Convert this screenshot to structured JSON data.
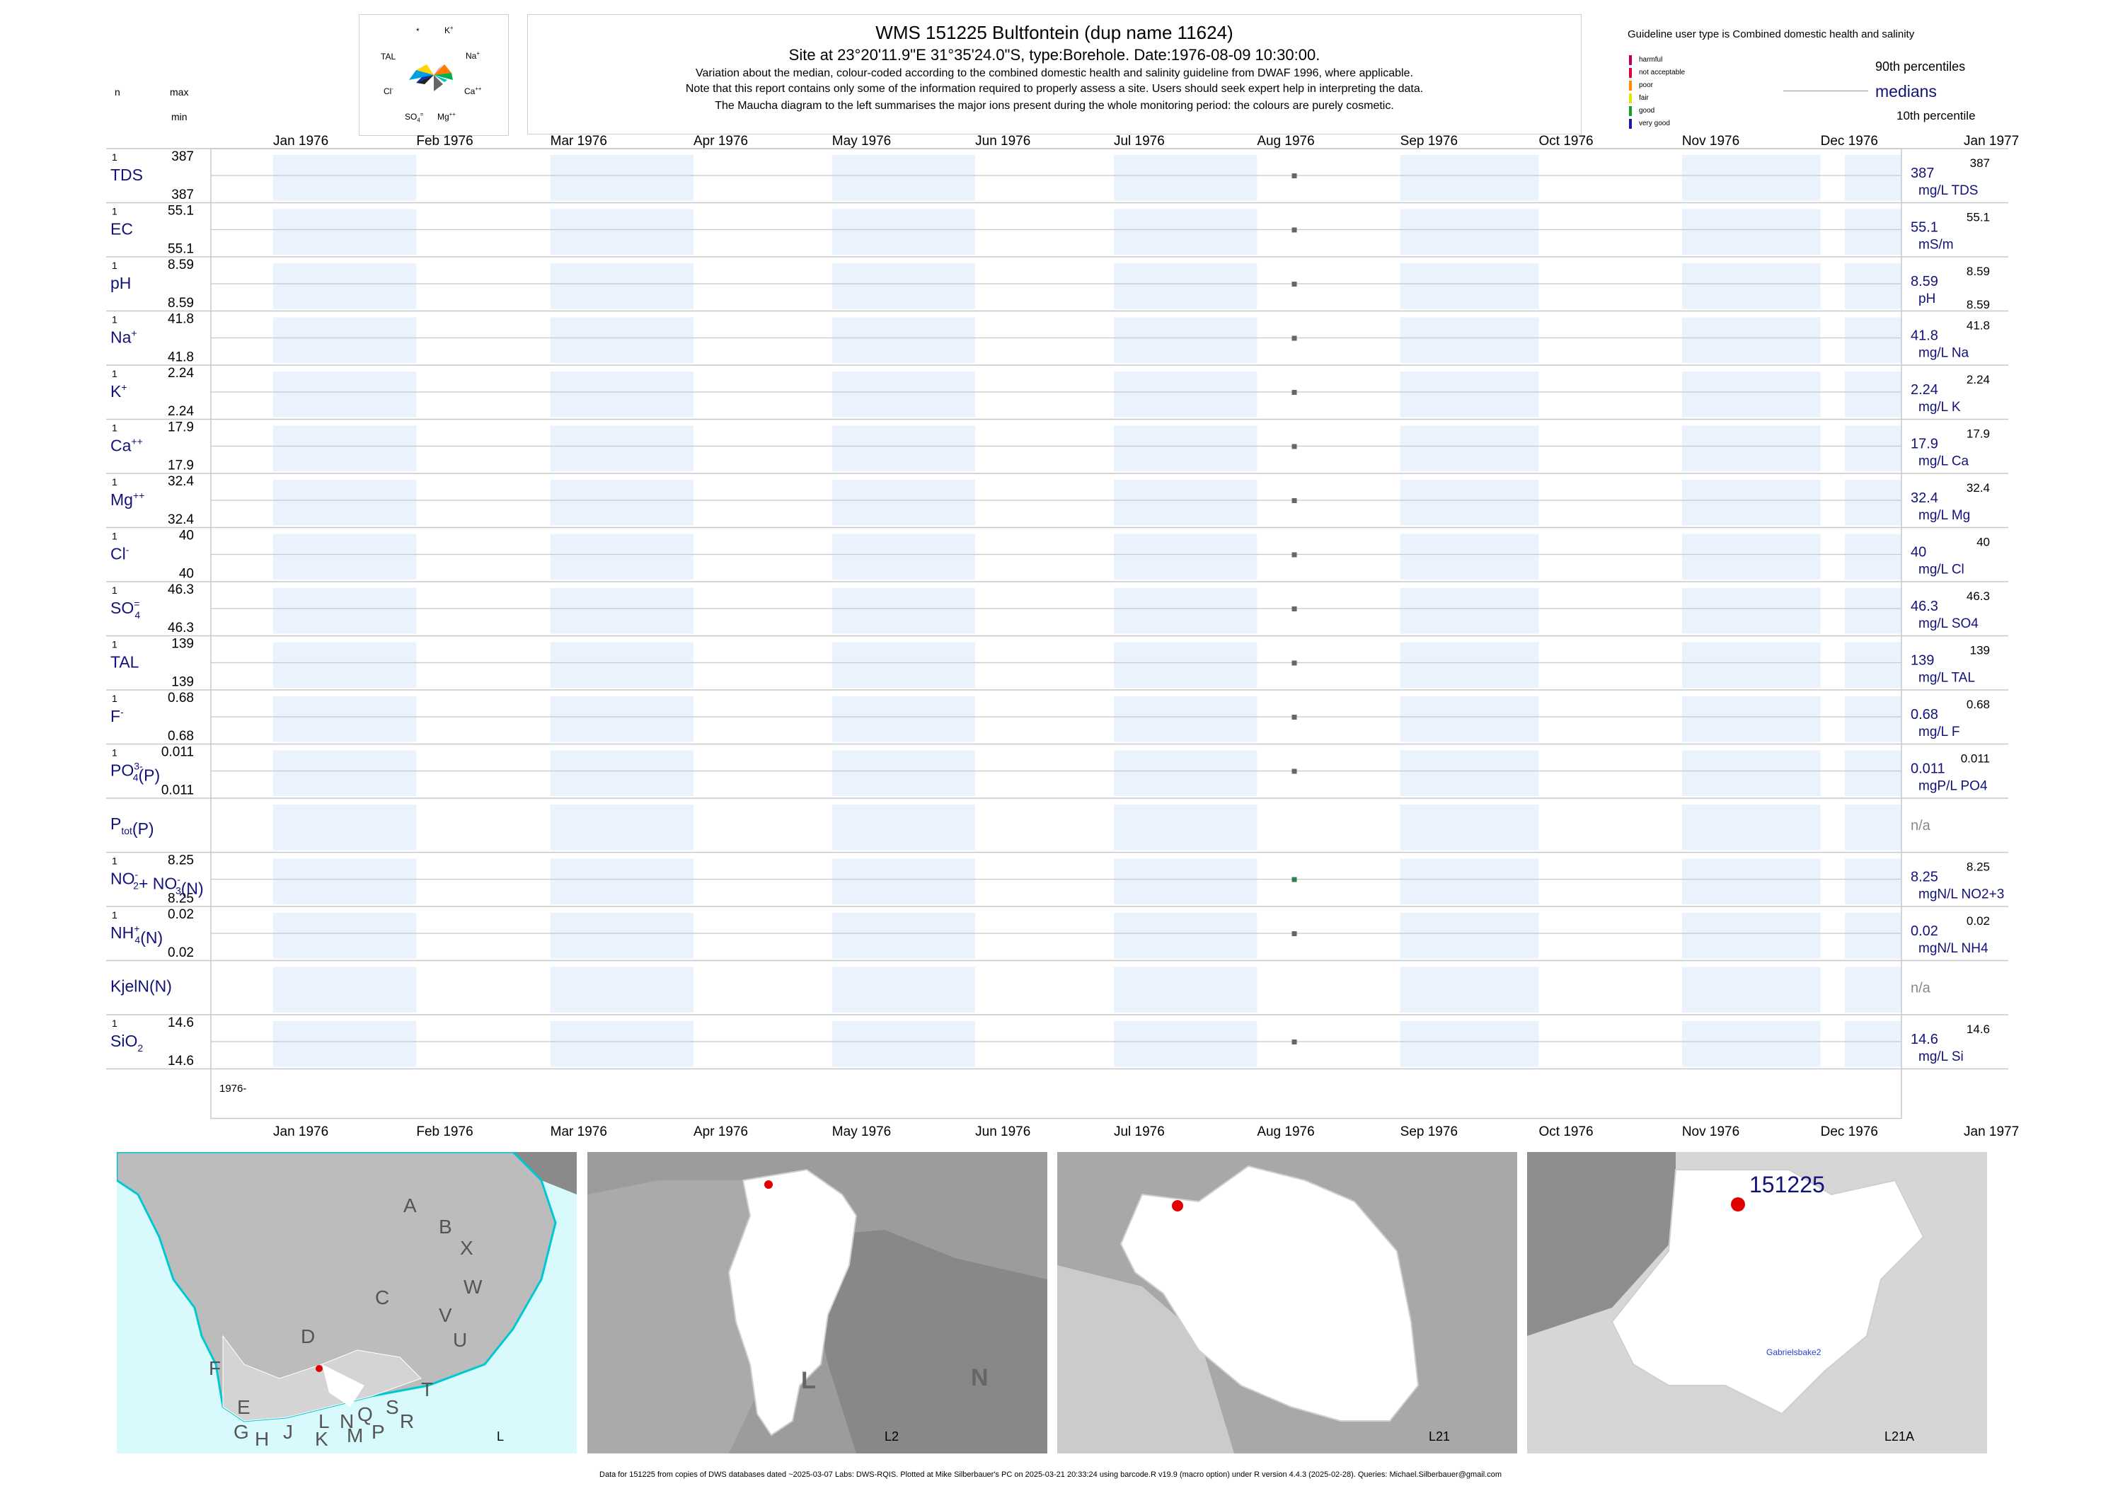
{
  "header": {
    "title": "WMS 151225  Bultfontein (dup name 11624)",
    "site_line": "Site at 23°20'11.9\"E 31°35'24.0\"S, type:Borehole. Date:1976-08-09 10:30:00.",
    "note1": "Variation about the median,  colour-coded according to the combined domestic health and salinity guideline from DWAF 1996, where applicable.",
    "note2": "Note that this report contains only some of the information required to properly assess a site. Users should seek expert help in interpreting the data.",
    "note3": "The Maucha diagram to the left summarises the major ions present during the whole monitoring period: the colours are purely cosmetic."
  },
  "maucha": {
    "labels": {
      "top_left": "*",
      "k": "K",
      "k_sup": "+",
      "tal": "TAL",
      "na": "Na",
      "na_sup": "+",
      "cl": "Cl",
      "cl_sup": "-",
      "ca": "Ca",
      "ca_sup": "++",
      "so4": "SO",
      "so4_sub": "4",
      "so4_sup": "=",
      "mg": "Mg",
      "mg_sup": "++"
    }
  },
  "left_header": {
    "n": "n",
    "max": "max",
    "min": "min"
  },
  "guideline": {
    "heading": "Guideline user type is Combined domestic health and salinity",
    "classes": [
      {
        "label": "harmful",
        "color": "#b8005a"
      },
      {
        "label": "not acceptable",
        "color": "#e0003c"
      },
      {
        "label": "poor",
        "color": "#ff8c00"
      },
      {
        "label": "fair",
        "color": "#e8e000"
      },
      {
        "label": "good",
        "color": "#1a9c2a"
      },
      {
        "label": "very good",
        "color": "#1a1aa8"
      }
    ],
    "p90": "90th percentiles",
    "medians": "medians",
    "p10": "10th percentile"
  },
  "colors": {
    "band": "#eaf3fd",
    "grid": "#c8c8c8",
    "navy": "#12127a",
    "marker": "#666666",
    "marker_good": "#2e7d52"
  },
  "chart_data": {
    "type": "scatter",
    "sample_date": "1976-08-09",
    "x_range": [
      "1976-01-01",
      "1977-01-01"
    ],
    "month_ticks": [
      "Jan 1976",
      "Feb 1976",
      "Mar 1976",
      "Apr 1976",
      "May 1976",
      "Jun 1976",
      "Jul 1976",
      "Aug 1976",
      "Sep 1976",
      "Oct 1976",
      "Nov 1976",
      "Dec 1976",
      "Jan 1977"
    ],
    "year_label": "1976-",
    "series": [
      {
        "n": "1",
        "max": "387",
        "min": "387",
        "label": "TDS",
        "median": "387",
        "unit": "mg/L TDS",
        "p90": "387",
        "p10": "",
        "value": 387,
        "class": "plain"
      },
      {
        "n": "1",
        "max": "55.1",
        "min": "55.1",
        "label": "EC",
        "median": "55.1",
        "unit": "mS/m",
        "p90": "55.1",
        "p10": "",
        "value": 55.1,
        "class": "plain"
      },
      {
        "n": "1",
        "max": "8.59",
        "min": "8.59",
        "label": "pH",
        "median": "8.59",
        "unit": "pH",
        "p90": "8.59",
        "p10": "8.59",
        "value": 8.59,
        "class": "plain"
      },
      {
        "n": "1",
        "max": "41.8",
        "min": "41.8",
        "label": "Na",
        "sup": "+",
        "median": "41.8",
        "unit": "mg/L Na",
        "p90": "41.8",
        "p10": "",
        "value": 41.8,
        "class": "plain"
      },
      {
        "n": "1",
        "max": "2.24",
        "min": "2.24",
        "label": "K",
        "sup": "+",
        "median": "2.24",
        "unit": "mg/L K",
        "p90": "2.24",
        "p10": "",
        "value": 2.24,
        "class": "plain"
      },
      {
        "n": "1",
        "max": "17.9",
        "min": "17.9",
        "label": "Ca",
        "sup": "++",
        "median": "17.9",
        "unit": "mg/L Ca",
        "p90": "17.9",
        "p10": "",
        "value": 17.9,
        "class": "plain"
      },
      {
        "n": "1",
        "max": "32.4",
        "min": "32.4",
        "label": "Mg",
        "sup": "++",
        "median": "32.4",
        "unit": "mg/L Mg",
        "p90": "32.4",
        "p10": "",
        "value": 32.4,
        "class": "plain"
      },
      {
        "n": "1",
        "max": "40",
        "min": "40",
        "label": "Cl",
        "sup": "-",
        "median": "40",
        "unit": "mg/L Cl",
        "p90": "40",
        "p10": "",
        "value": 40,
        "class": "plain"
      },
      {
        "n": "1",
        "max": "46.3",
        "min": "46.3",
        "label": "SO",
        "sub": "4",
        "sup": "=",
        "median": "46.3",
        "unit": "mg/L SO4",
        "p90": "46.3",
        "p10": "",
        "value": 46.3,
        "class": "plain"
      },
      {
        "n": "1",
        "max": "139",
        "min": "139",
        "label": "TAL",
        "median": "139",
        "unit": "mg/L TAL",
        "p90": "139",
        "p10": "",
        "value": 139,
        "class": "plain"
      },
      {
        "n": "1",
        "max": "0.68",
        "min": "0.68",
        "label": "F",
        "sup": "-",
        "median": "0.68",
        "unit": "mg/L F",
        "p90": "0.68",
        "p10": "",
        "value": 0.68,
        "class": "plain"
      },
      {
        "n": "1",
        "max": "0.011",
        "min": "0.011",
        "label": "PO",
        "sub": "4",
        "sup": "3-",
        "suffix": "(P)",
        "median": "0.011",
        "unit": "mgP/L PO4",
        "p90": "0.011",
        "p10": "",
        "value": 0.011,
        "class": "plain"
      },
      {
        "n": "",
        "max": "",
        "min": "",
        "label": "P",
        "sub": "tot",
        "suffix": "(P)",
        "median": "n/a",
        "unit": "",
        "p90": "",
        "p10": "",
        "value": null,
        "class": "na"
      },
      {
        "n": "1",
        "max": "8.25",
        "min": "8.25",
        "label": "NO",
        "sub": "2",
        "sup": "-",
        "mid": "+ NO",
        "mid_sub": "3",
        "mid_sup": "-",
        "suffix": "(N)",
        "median": "8.25",
        "unit": "mgN/L NO2+3",
        "p90": "8.25",
        "p10": "",
        "value": 8.25,
        "class": "good"
      },
      {
        "n": "1",
        "max": "0.02",
        "min": "0.02",
        "label": "NH",
        "sub": "4",
        "sup": "+",
        "suffix": "(N)",
        "median": "0.02",
        "unit": "mgN/L NH4",
        "p90": "0.02",
        "p10": "",
        "value": 0.02,
        "class": "plain"
      },
      {
        "n": "",
        "max": "",
        "min": "",
        "label": "KjelN(N)",
        "median": "n/a",
        "unit": "",
        "p90": "",
        "p10": "",
        "value": null,
        "class": "na"
      },
      {
        "n": "1",
        "max": "14.6",
        "min": "14.6",
        "label": "SiO",
        "sub": "2",
        "median": "14.6",
        "unit": "mg/L Si",
        "p90": "14.6",
        "p10": "",
        "value": 14.6,
        "class": "plain"
      }
    ]
  },
  "maps": {
    "panel1": {
      "caption": "L",
      "letters": [
        "A",
        "B",
        "X",
        "W",
        "C",
        "V",
        "U",
        "D",
        "T",
        "F",
        "E",
        "S",
        "R",
        "Q",
        "N",
        "L",
        "M",
        "P",
        "K",
        "J",
        "H",
        "G"
      ]
    },
    "panel2": {
      "caption": "L2",
      "letters": [
        "L",
        "N"
      ]
    },
    "panel3": {
      "caption": "L21"
    },
    "panel4": {
      "caption": "L21A",
      "site_label": "151225",
      "place_label": "Gabrielsbake2"
    }
  },
  "footer": "Data for 151225 from copies of DWS databases dated ~2025-03-07 Labs: DWS-RQIS. Plotted at Mike Silberbauer's PC on 2025-03-21 20:33:24 using barcode.R v19.9 (macro option) under R version 4.4.3 (2025-02-28). Queries: Michael.Silberbauer@gmail.com"
}
